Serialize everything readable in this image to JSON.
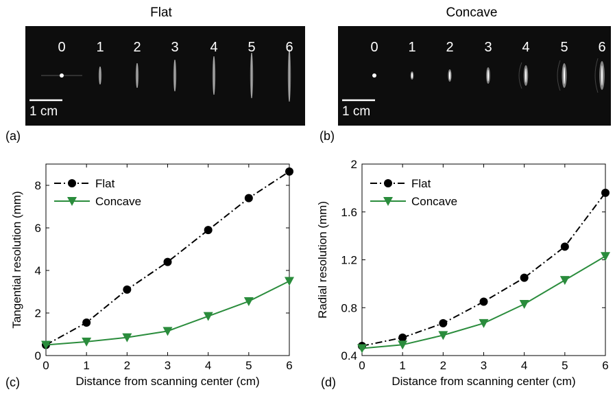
{
  "panels": {
    "a": {
      "title": "Flat",
      "label": "(a)",
      "scale_label": "1 cm",
      "markers": [
        "0",
        "1",
        "2",
        "3",
        "4",
        "5",
        "6"
      ]
    },
    "b": {
      "title": "Concave",
      "label": "(b)",
      "scale_label": "1 cm",
      "markers": [
        "0",
        "1",
        "2",
        "3",
        "4",
        "5",
        "6"
      ]
    },
    "c": {
      "label": "(c)"
    },
    "d": {
      "label": "(d)"
    }
  },
  "colors": {
    "flat": "#000000",
    "concave": "#2a8c3c",
    "image_bg": "#0d0d0d"
  },
  "chart_data": [
    {
      "type": "line",
      "panel": "c",
      "xlabel": "Distance from scanning center (cm)",
      "ylabel": "Tangential resolution (mm)",
      "xlim": [
        0,
        6
      ],
      "ylim": [
        0,
        9
      ],
      "xticks": [
        0,
        1,
        2,
        3,
        4,
        5,
        6
      ],
      "yticks": [
        0,
        2,
        4,
        6,
        8
      ],
      "legend_position": "top-left",
      "grid": false,
      "x": [
        0,
        1,
        2,
        3,
        4,
        5,
        6
      ],
      "series": [
        {
          "name": "Flat",
          "values": [
            0.5,
            1.55,
            3.1,
            4.4,
            5.9,
            7.4,
            8.65
          ],
          "marker": "circle",
          "line": "dash-dot",
          "color": "#000000"
        },
        {
          "name": "Concave",
          "values": [
            0.5,
            0.65,
            0.85,
            1.15,
            1.85,
            2.55,
            3.5
          ],
          "marker": "triangle-down",
          "line": "solid",
          "color": "#2a8c3c"
        }
      ]
    },
    {
      "type": "line",
      "panel": "d",
      "xlabel": "Distance from scanning center (cm)",
      "ylabel": "Radial resolution (mm)",
      "xlim": [
        0,
        6
      ],
      "ylim": [
        0.4,
        2.0
      ],
      "xticks": [
        0,
        1,
        2,
        3,
        4,
        5,
        6
      ],
      "yticks": [
        0.4,
        0.8,
        1.2,
        1.6,
        2.0
      ],
      "ytick_labels": [
        "0.4",
        "0.8",
        "1.2",
        "1.6",
        "2"
      ],
      "legend_position": "top-left",
      "grid": false,
      "x": [
        0,
        1,
        2,
        3,
        4,
        5,
        6
      ],
      "series": [
        {
          "name": "Flat",
          "values": [
            0.48,
            0.55,
            0.67,
            0.85,
            1.05,
            1.31,
            1.76
          ],
          "marker": "circle",
          "line": "dash-dot",
          "color": "#000000"
        },
        {
          "name": "Concave",
          "values": [
            0.46,
            0.49,
            0.57,
            0.67,
            0.83,
            1.03,
            1.23
          ],
          "marker": "triangle-down",
          "line": "solid",
          "color": "#2a8c3c"
        }
      ]
    }
  ]
}
